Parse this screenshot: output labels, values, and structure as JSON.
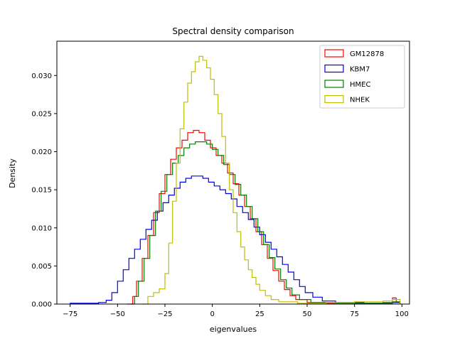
{
  "chart_data": {
    "type": "histogram-step",
    "title": "Spectral density comparison",
    "xlabel": "eigenvalues",
    "ylabel": "Density",
    "xlim": [
      -82,
      104
    ],
    "ylim": [
      0,
      0.0345
    ],
    "x_ticks": [
      -75,
      -50,
      -25,
      0,
      25,
      50,
      75,
      100
    ],
    "x_tick_labels": [
      "−75",
      "−50",
      "−25",
      "0",
      "25",
      "50",
      "75",
      "100"
    ],
    "y_ticks": [
      0.0,
      0.005,
      0.01,
      0.015,
      0.02,
      0.025,
      0.03
    ],
    "y_tick_labels": [
      "0.000",
      "0.005",
      "0.010",
      "0.015",
      "0.020",
      "0.025",
      "0.030"
    ],
    "legend_position": "top-right",
    "series": [
      {
        "name": "GM12878",
        "color": "#ff0000",
        "points": [
          [
            -45,
            0
          ],
          [
            -42,
            0.001
          ],
          [
            -40,
            0.003
          ],
          [
            -37,
            0.006
          ],
          [
            -34,
            0.009
          ],
          [
            -31,
            0.012
          ],
          [
            -28,
            0.0145
          ],
          [
            -25,
            0.017
          ],
          [
            -22,
            0.019
          ],
          [
            -19,
            0.0205
          ],
          [
            -16,
            0.0215
          ],
          [
            -13,
            0.0225
          ],
          [
            -10,
            0.0228
          ],
          [
            -7,
            0.0225
          ],
          [
            -4,
            0.0215
          ],
          [
            -1,
            0.0205
          ],
          [
            2,
            0.0195
          ],
          [
            5,
            0.0185
          ],
          [
            8,
            0.0172
          ],
          [
            11,
            0.0158
          ],
          [
            14,
            0.0143
          ],
          [
            17,
            0.0128
          ],
          [
            20,
            0.0112
          ],
          [
            23,
            0.0095
          ],
          [
            26,
            0.0078
          ],
          [
            29,
            0.006
          ],
          [
            32,
            0.0044
          ],
          [
            35,
            0.003
          ],
          [
            38,
            0.0019
          ],
          [
            41,
            0.0011
          ],
          [
            44,
            0.0006
          ],
          [
            50,
            0.0002
          ],
          [
            60,
            0.0001
          ],
          [
            75,
            0.0001
          ],
          [
            90,
            0.0002
          ],
          [
            95,
            0.0008
          ],
          [
            97,
            0.0003
          ],
          [
            99,
            0
          ]
        ]
      },
      {
        "name": "KBM7",
        "color": "#0000ff",
        "points": [
          [
            -75,
            0.0001
          ],
          [
            -70,
            0.0001
          ],
          [
            -60,
            0.0002
          ],
          [
            -56,
            0.0005
          ],
          [
            -53,
            0.0015
          ],
          [
            -50,
            0.003
          ],
          [
            -47,
            0.0045
          ],
          [
            -44,
            0.006
          ],
          [
            -41,
            0.0072
          ],
          [
            -38,
            0.0085
          ],
          [
            -35,
            0.0098
          ],
          [
            -32,
            0.011
          ],
          [
            -29,
            0.0122
          ],
          [
            -26,
            0.0133
          ],
          [
            -23,
            0.0143
          ],
          [
            -20,
            0.0152
          ],
          [
            -17,
            0.016
          ],
          [
            -14,
            0.0165
          ],
          [
            -11,
            0.0168
          ],
          [
            -8,
            0.0168
          ],
          [
            -5,
            0.0165
          ],
          [
            -2,
            0.016
          ],
          [
            1,
            0.0155
          ],
          [
            4,
            0.015
          ],
          [
            7,
            0.0145
          ],
          [
            10,
            0.0138
          ],
          [
            13,
            0.0128
          ],
          [
            16,
            0.012
          ],
          [
            19,
            0.0111
          ],
          [
            22,
            0.0101
          ],
          [
            25,
            0.0091
          ],
          [
            28,
            0.0081
          ],
          [
            31,
            0.0072
          ],
          [
            34,
            0.0062
          ],
          [
            37,
            0.0052
          ],
          [
            40,
            0.0042
          ],
          [
            43,
            0.0032
          ],
          [
            46,
            0.0023
          ],
          [
            49,
            0.0015
          ],
          [
            53,
            0.0009
          ],
          [
            58,
            0.0004
          ],
          [
            65,
            0.0002
          ],
          [
            80,
            0.0001
          ],
          [
            95,
            0.0002
          ],
          [
            99,
            0
          ]
        ]
      },
      {
        "name": "HMEC",
        "color": "#008000",
        "points": [
          [
            -43,
            0
          ],
          [
            -41,
            0.001
          ],
          [
            -39,
            0.003
          ],
          [
            -36,
            0.006
          ],
          [
            -33,
            0.009
          ],
          [
            -30,
            0.0122
          ],
          [
            -27,
            0.0148
          ],
          [
            -24,
            0.017
          ],
          [
            -21,
            0.0185
          ],
          [
            -18,
            0.0195
          ],
          [
            -15,
            0.0205
          ],
          [
            -12,
            0.021
          ],
          [
            -9,
            0.0213
          ],
          [
            -6,
            0.0213
          ],
          [
            -3,
            0.021
          ],
          [
            0,
            0.0203
          ],
          [
            3,
            0.0195
          ],
          [
            6,
            0.0183
          ],
          [
            9,
            0.017
          ],
          [
            12,
            0.0157
          ],
          [
            15,
            0.0143
          ],
          [
            18,
            0.0128
          ],
          [
            21,
            0.0112
          ],
          [
            24,
            0.0095
          ],
          [
            27,
            0.0078
          ],
          [
            30,
            0.0061
          ],
          [
            33,
            0.0046
          ],
          [
            36,
            0.0032
          ],
          [
            39,
            0.0021
          ],
          [
            42,
            0.0012
          ],
          [
            46,
            0.0006
          ],
          [
            52,
            0.0002
          ],
          [
            65,
            0.0001
          ],
          [
            85,
            0.0001
          ],
          [
            95,
            0.0003
          ],
          [
            99,
            0
          ]
        ]
      },
      {
        "name": "NHEK",
        "color": "#bfbf00",
        "points": [
          [
            -37,
            0
          ],
          [
            -34,
            0.001
          ],
          [
            -31,
            0.0015
          ],
          [
            -28,
            0.002
          ],
          [
            -25,
            0.004
          ],
          [
            -23,
            0.008
          ],
          [
            -21,
            0.0135
          ],
          [
            -19,
            0.0185
          ],
          [
            -17,
            0.023
          ],
          [
            -15,
            0.0265
          ],
          [
            -13,
            0.029
          ],
          [
            -11,
            0.0305
          ],
          [
            -9,
            0.0318
          ],
          [
            -7,
            0.0325
          ],
          [
            -5,
            0.032
          ],
          [
            -3,
            0.031
          ],
          [
            -1,
            0.0295
          ],
          [
            1,
            0.0275
          ],
          [
            3,
            0.025
          ],
          [
            5,
            0.022
          ],
          [
            7,
            0.0185
          ],
          [
            9,
            0.015
          ],
          [
            11,
            0.012
          ],
          [
            13,
            0.0095
          ],
          [
            15,
            0.0075
          ],
          [
            17,
            0.0058
          ],
          [
            19,
            0.0045
          ],
          [
            21,
            0.0035
          ],
          [
            23,
            0.0026
          ],
          [
            25,
            0.0018
          ],
          [
            28,
            0.0011
          ],
          [
            31,
            0.0006
          ],
          [
            35,
            0.0003
          ],
          [
            45,
            0.0001
          ],
          [
            60,
            0.0002
          ],
          [
            75,
            0.0003
          ],
          [
            90,
            0.0004
          ],
          [
            95,
            0.0006
          ],
          [
            99,
            0
          ]
        ]
      }
    ]
  }
}
